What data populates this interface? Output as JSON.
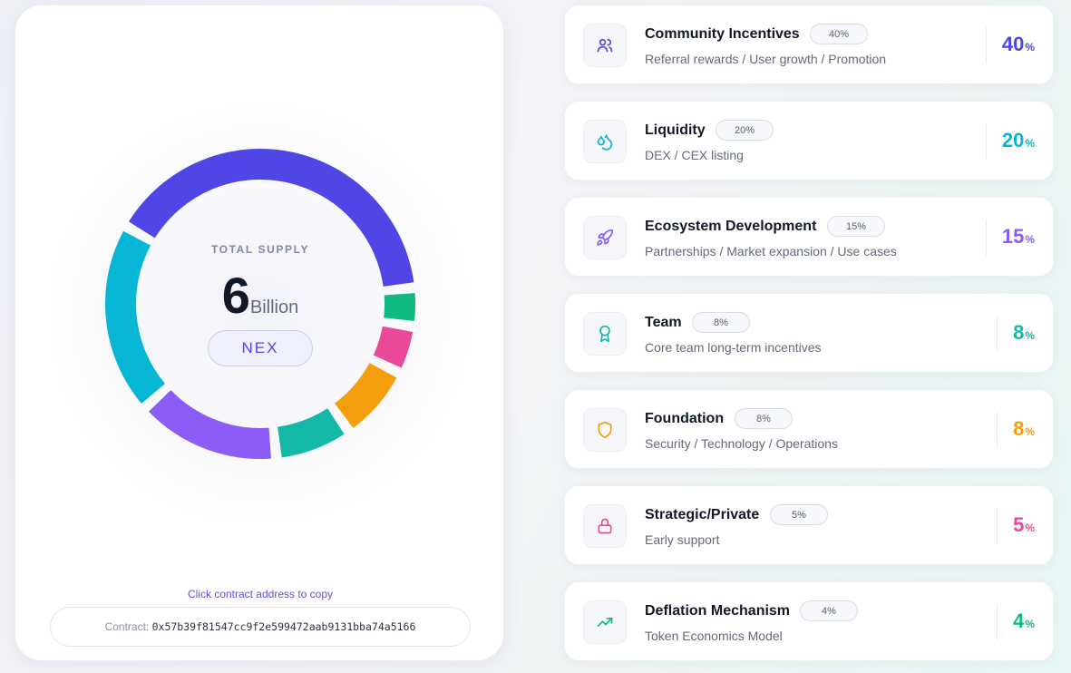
{
  "supply": {
    "label": "TOTAL SUPPLY",
    "amount": "6",
    "unit": "Billion",
    "token": "NEX"
  },
  "contract": {
    "copy_hint": "Click contract address to copy",
    "label": "Contract:",
    "address": "0x57b39f81547cc9f2e599472aab9131bba74a5166"
  },
  "chart_data": {
    "type": "pie",
    "title": "",
    "categories": [
      "Community Incentives",
      "Liquidity",
      "Ecosystem Development",
      "Team",
      "Foundation",
      "Strategic/Private",
      "Deflation Mechanism"
    ],
    "values": [
      40,
      20,
      15,
      8,
      8,
      5,
      4
    ],
    "colors": [
      "#4f46e5",
      "#06b6d4",
      "#8b5cf6",
      "#14b8a6",
      "#f59e0b",
      "#ec4899",
      "#10b981"
    ]
  },
  "allocations": [
    {
      "title": "Community Incentives",
      "badge": "40%",
      "desc": "Referral rewards / User growth / Promotion",
      "pct": "40",
      "sign": "%",
      "color": "#4f46e5",
      "icon": "users-icon"
    },
    {
      "title": "Liquidity",
      "badge": "20%",
      "desc": "DEX / CEX listing",
      "pct": "20",
      "sign": "%",
      "color": "#06b6d4",
      "icon": "droplets-icon"
    },
    {
      "title": "Ecosystem Development",
      "badge": "15%",
      "desc": "Partnerships / Market expansion / Use cases",
      "pct": "15",
      "sign": "%",
      "color": "#8b5cf6",
      "icon": "rocket-icon"
    },
    {
      "title": "Team",
      "badge": "8%",
      "desc": "Core team long-term incentives",
      "pct": "8",
      "sign": "%",
      "color": "#14b8a6",
      "icon": "award-icon"
    },
    {
      "title": "Foundation",
      "badge": "8%",
      "desc": "Security / Technology / Operations",
      "pct": "8",
      "sign": "%",
      "color": "#f59e0b",
      "icon": "shield-icon"
    },
    {
      "title": "Strategic/Private",
      "badge": "5%",
      "desc": "Early support",
      "pct": "5",
      "sign": "%",
      "color": "#ec4899",
      "icon": "lock-icon"
    },
    {
      "title": "Deflation Mechanism",
      "badge": "4%",
      "desc": "Token Economics Model",
      "pct": "4",
      "sign": "%",
      "color": "#10b981",
      "icon": "trending-up-icon"
    }
  ]
}
